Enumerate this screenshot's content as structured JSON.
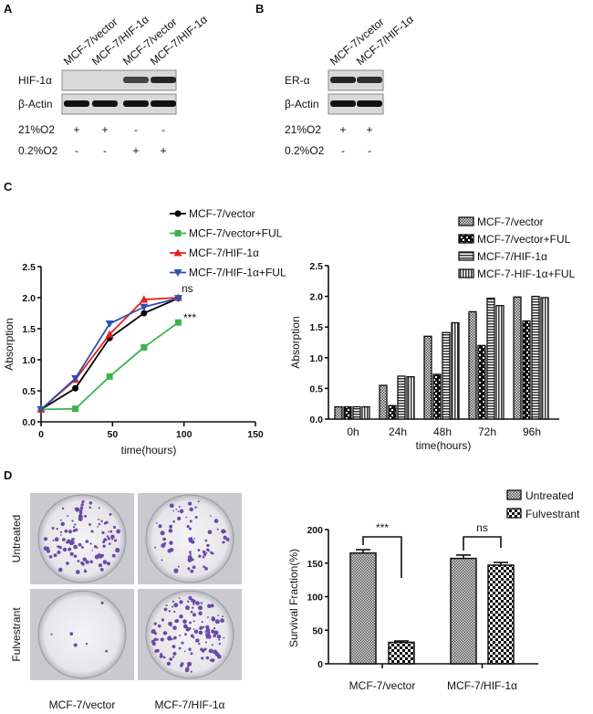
{
  "panels": {
    "a": "A",
    "b": "B",
    "c": "C",
    "d": "D"
  },
  "blot_a": {
    "lanes": [
      "MCF-7/vector",
      "MCF-7/HIF-1α",
      "MCF-7/vector",
      "MCF-7/HIF-1α"
    ],
    "rows": [
      "HIF-1α",
      "β-Actin"
    ],
    "conditions": [
      {
        "label": "21%O2",
        "marks": [
          "+",
          "+",
          "-",
          "-"
        ]
      },
      {
        "label": "0.2%O2",
        "marks": [
          "-",
          "-",
          "+",
          "+"
        ]
      }
    ]
  },
  "blot_b": {
    "lanes": [
      "MCF-7/vcetor",
      "MCF-7/HIF-1α"
    ],
    "rows": [
      "ER-α",
      "β-Actin"
    ],
    "conditions": [
      {
        "label": "21%O2",
        "marks": [
          "+",
          "+"
        ]
      },
      {
        "label": "0.2%O2",
        "marks": [
          "-",
          "-"
        ]
      }
    ]
  },
  "photos": {
    "row_labels": [
      "Untreated",
      "Fulvestrant"
    ],
    "col_labels": [
      "MCF-7/vector",
      "MCF-7/HIF-1α"
    ],
    "colony_color": "#6a4aa8"
  },
  "chart_data": [
    {
      "type": "line",
      "xlabel": "time(hours)",
      "ylabel": "Absorption",
      "xlim": [
        0,
        150
      ],
      "ylim": [
        0,
        2.5
      ],
      "xticks": [
        "0",
        "50",
        "100",
        "150"
      ],
      "yticks": [
        "0.0",
        "0.5",
        "1.0",
        "1.5",
        "2.0",
        "2.5"
      ],
      "x": [
        0,
        24,
        48,
        72,
        96
      ],
      "legend": "top-right",
      "series": [
        {
          "name": "MCF-7/vector",
          "color": "#000000",
          "marker": "circle",
          "values": [
            0.2,
            0.54,
            1.35,
            1.75,
            1.99
          ]
        },
        {
          "name": "MCF-7/vector+FUL",
          "color": "#3cb44b",
          "marker": "square",
          "values": [
            0.2,
            0.21,
            0.73,
            1.2,
            1.6
          ]
        },
        {
          "name": "MCF-7/HIF-1α",
          "color": "#e8201c",
          "marker": "triangle-up",
          "values": [
            0.2,
            0.68,
            1.41,
            1.97,
            2.0
          ]
        },
        {
          "name": "MCF-7/HIF-1α+FUL",
          "color": "#3050b0",
          "marker": "triangle-down",
          "values": [
            0.2,
            0.7,
            1.58,
            1.85,
            1.99
          ]
        }
      ],
      "annotations": [
        "ns",
        "***"
      ]
    },
    {
      "type": "bar",
      "xlabel": "time(hours)",
      "ylabel": "Absorption",
      "ylim": [
        0,
        2.5
      ],
      "yticks": [
        "0.0",
        "0.5",
        "1.0",
        "1.5",
        "2.0",
        "2.5"
      ],
      "categories": [
        "0h",
        "24h",
        "48h",
        "72h",
        "96h"
      ],
      "legend": "top-right",
      "series": [
        {
          "name": "MCF-7/vector",
          "pattern": "fine-check",
          "values": [
            0.2,
            0.55,
            1.35,
            1.75,
            1.99
          ]
        },
        {
          "name": "MCF-7/vector+FUL",
          "pattern": "zigzag",
          "values": [
            0.2,
            0.22,
            0.73,
            1.2,
            1.6
          ]
        },
        {
          "name": "MCF-7/HIF-1α",
          "pattern": "horizontal-lines",
          "values": [
            0.2,
            0.7,
            1.41,
            1.97,
            2.0
          ]
        },
        {
          "name": "MCF-7-HIF-1α+FUL",
          "pattern": "vertical-lines",
          "values": [
            0.2,
            0.69,
            1.57,
            1.85,
            1.98
          ]
        }
      ]
    },
    {
      "type": "bar",
      "ylabel": "Survival Fraction(%)",
      "ylim": [
        0,
        200
      ],
      "yticks": [
        "0",
        "50",
        "100",
        "150",
        "200"
      ],
      "categories": [
        "MCF-7/vector",
        "MCF-7/HIF-1α"
      ],
      "legend": "top-right",
      "series": [
        {
          "name": "Untreated",
          "pattern": "fine-check",
          "values": [
            165,
            157
          ],
          "errors": [
            5,
            5
          ]
        },
        {
          "name": "Fulvestrant",
          "pattern": "coarse-check",
          "values": [
            32,
            147
          ],
          "errors": [
            2,
            4
          ]
        }
      ],
      "significance": [
        "***",
        "ns"
      ]
    }
  ]
}
